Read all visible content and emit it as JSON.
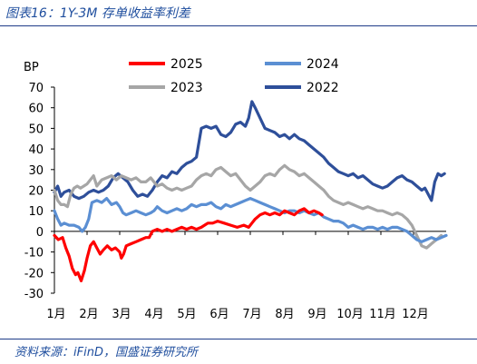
{
  "page": {
    "title": "图表16：1Y-3M 存单收益率利差",
    "source": "资料来源：iFinD，国盛证券研究所"
  },
  "chart_data": {
    "type": "line",
    "title": "",
    "ylabel": "BP",
    "xlabel": "",
    "ylim": [
      -30,
      70
    ],
    "yticks": [
      -30,
      -20,
      -10,
      0,
      10,
      20,
      30,
      40,
      50,
      60,
      70
    ],
    "xlim": [
      0,
      12
    ],
    "xticks": [
      {
        "label": "1月",
        "x": 0
      },
      {
        "label": "2月",
        "x": 1
      },
      {
        "label": "3月",
        "x": 2
      },
      {
        "label": "4月",
        "x": 3
      },
      {
        "label": "5月",
        "x": 4
      },
      {
        "label": "6月",
        "x": 5
      },
      {
        "label": "7月",
        "x": 6
      },
      {
        "label": "8月",
        "x": 7
      },
      {
        "label": "9月",
        "x": 8
      },
      {
        "label": "10月",
        "x": 9
      },
      {
        "label": "11月",
        "x": 10
      },
      {
        "label": "12月",
        "x": 11
      }
    ],
    "grid": false,
    "legend_position": "top",
    "series": [
      {
        "name": "2025",
        "color": "#ff0000",
        "points": [
          [
            0,
            -2
          ],
          [
            0.12,
            -4
          ],
          [
            0.25,
            -3
          ],
          [
            0.35,
            -8
          ],
          [
            0.45,
            -12
          ],
          [
            0.55,
            -18
          ],
          [
            0.65,
            -21
          ],
          [
            0.72,
            -20
          ],
          [
            0.82,
            -24
          ],
          [
            0.92,
            -19
          ],
          [
            1.0,
            -13
          ],
          [
            1.1,
            -7
          ],
          [
            1.2,
            -5
          ],
          [
            1.3,
            -8
          ],
          [
            1.4,
            -11
          ],
          [
            1.5,
            -9
          ],
          [
            1.62,
            -7
          ],
          [
            1.75,
            -9
          ],
          [
            1.87,
            -8
          ],
          [
            2.0,
            -10
          ],
          [
            2.05,
            -13
          ],
          [
            2.12,
            -11
          ],
          [
            2.2,
            -7
          ],
          [
            2.35,
            -6
          ],
          [
            2.5,
            -5
          ],
          [
            2.65,
            -4
          ],
          [
            2.8,
            -3
          ],
          [
            2.9,
            -3
          ],
          [
            3.0,
            0
          ],
          [
            3.15,
            1
          ],
          [
            3.3,
            0
          ],
          [
            3.45,
            1
          ],
          [
            3.6,
            0
          ],
          [
            3.75,
            1
          ],
          [
            3.9,
            2
          ],
          [
            4.05,
            1
          ],
          [
            4.2,
            2
          ],
          [
            4.35,
            1
          ],
          [
            4.5,
            2
          ],
          [
            4.7,
            4
          ],
          [
            4.85,
            4
          ],
          [
            5.0,
            5
          ],
          [
            5.2,
            4
          ],
          [
            5.4,
            3
          ],
          [
            5.6,
            2
          ],
          [
            5.8,
            3
          ],
          [
            5.95,
            2
          ],
          [
            6.05,
            4
          ],
          [
            6.15,
            6
          ],
          [
            6.3,
            8
          ],
          [
            6.45,
            9
          ],
          [
            6.6,
            8
          ],
          [
            6.75,
            9
          ],
          [
            6.9,
            8
          ],
          [
            7.05,
            10
          ],
          [
            7.2,
            9
          ],
          [
            7.35,
            8
          ],
          [
            7.5,
            10
          ],
          [
            7.65,
            11
          ],
          [
            7.8,
            9
          ],
          [
            7.95,
            10
          ],
          [
            8.1,
            9
          ],
          [
            8.2,
            8
          ]
        ]
      },
      {
        "name": "2024",
        "color": "#5b8fd3",
        "points": [
          [
            0,
            10
          ],
          [
            0.1,
            6
          ],
          [
            0.2,
            3
          ],
          [
            0.3,
            4
          ],
          [
            0.45,
            3
          ],
          [
            0.6,
            3
          ],
          [
            0.75,
            2
          ],
          [
            0.85,
            0
          ],
          [
            0.95,
            2
          ],
          [
            1.05,
            6
          ],
          [
            1.15,
            14
          ],
          [
            1.3,
            15
          ],
          [
            1.45,
            14
          ],
          [
            1.6,
            16
          ],
          [
            1.75,
            13
          ],
          [
            1.9,
            14
          ],
          [
            2.0,
            12
          ],
          [
            2.1,
            9
          ],
          [
            2.2,
            8
          ],
          [
            2.35,
            9
          ],
          [
            2.5,
            10
          ],
          [
            2.65,
            9
          ],
          [
            2.8,
            8
          ],
          [
            2.95,
            9
          ],
          [
            3.05,
            10
          ],
          [
            3.15,
            12
          ],
          [
            3.3,
            10
          ],
          [
            3.45,
            9
          ],
          [
            3.6,
            10
          ],
          [
            3.75,
            11
          ],
          [
            3.9,
            10
          ],
          [
            4.05,
            11
          ],
          [
            4.2,
            13
          ],
          [
            4.35,
            12
          ],
          [
            4.5,
            13
          ],
          [
            4.65,
            13
          ],
          [
            4.8,
            14
          ],
          [
            4.95,
            12
          ],
          [
            5.1,
            11
          ],
          [
            5.25,
            13
          ],
          [
            5.4,
            12
          ],
          [
            5.55,
            13
          ],
          [
            5.7,
            14
          ],
          [
            5.85,
            15
          ],
          [
            6.0,
            16
          ],
          [
            6.15,
            15
          ],
          [
            6.3,
            14
          ],
          [
            6.45,
            13
          ],
          [
            6.6,
            12
          ],
          [
            6.75,
            11
          ],
          [
            6.9,
            10
          ],
          [
            7.05,
            9
          ],
          [
            7.2,
            10
          ],
          [
            7.35,
            10
          ],
          [
            7.5,
            9
          ],
          [
            7.65,
            10
          ],
          [
            7.8,
            9
          ],
          [
            7.95,
            8
          ],
          [
            8.1,
            9
          ],
          [
            8.25,
            7
          ],
          [
            8.4,
            6
          ],
          [
            8.55,
            5
          ],
          [
            8.7,
            5
          ],
          [
            8.85,
            4
          ],
          [
            9.0,
            2
          ],
          [
            9.15,
            3
          ],
          [
            9.3,
            2
          ],
          [
            9.45,
            1
          ],
          [
            9.6,
            2
          ],
          [
            9.75,
            2
          ],
          [
            9.9,
            1
          ],
          [
            10.05,
            2
          ],
          [
            10.2,
            1
          ],
          [
            10.35,
            2
          ],
          [
            10.5,
            2
          ],
          [
            10.65,
            1
          ],
          [
            10.8,
            0
          ],
          [
            10.95,
            -2
          ],
          [
            11.1,
            -4
          ],
          [
            11.25,
            -5
          ],
          [
            11.4,
            -4
          ],
          [
            11.55,
            -3
          ],
          [
            11.7,
            -4
          ],
          [
            11.85,
            -3
          ],
          [
            12.0,
            -2
          ]
        ]
      },
      {
        "name": "2023",
        "color": "#a6a6a6",
        "points": [
          [
            0,
            20
          ],
          [
            0.1,
            15
          ],
          [
            0.2,
            13
          ],
          [
            0.3,
            13
          ],
          [
            0.4,
            12
          ],
          [
            0.5,
            18
          ],
          [
            0.6,
            21
          ],
          [
            0.7,
            22
          ],
          [
            0.8,
            21
          ],
          [
            0.9,
            22
          ],
          [
            1.0,
            23
          ],
          [
            1.1,
            25
          ],
          [
            1.2,
            27
          ],
          [
            1.3,
            22
          ],
          [
            1.45,
            25
          ],
          [
            1.6,
            26
          ],
          [
            1.75,
            27
          ],
          [
            1.9,
            25
          ],
          [
            2.05,
            27
          ],
          [
            2.2,
            26
          ],
          [
            2.35,
            25
          ],
          [
            2.5,
            26
          ],
          [
            2.65,
            24
          ],
          [
            2.8,
            24
          ],
          [
            2.95,
            26
          ],
          [
            3.05,
            24
          ],
          [
            3.15,
            22
          ],
          [
            3.3,
            23
          ],
          [
            3.45,
            21
          ],
          [
            3.6,
            20
          ],
          [
            3.75,
            21
          ],
          [
            3.9,
            20
          ],
          [
            4.05,
            21
          ],
          [
            4.2,
            22
          ],
          [
            4.35,
            25
          ],
          [
            4.5,
            27
          ],
          [
            4.65,
            28
          ],
          [
            4.8,
            27
          ],
          [
            4.95,
            30
          ],
          [
            5.1,
            31
          ],
          [
            5.25,
            29
          ],
          [
            5.4,
            27
          ],
          [
            5.55,
            28
          ],
          [
            5.7,
            25
          ],
          [
            5.85,
            22
          ],
          [
            6.0,
            20
          ],
          [
            6.15,
            22
          ],
          [
            6.3,
            24
          ],
          [
            6.45,
            27
          ],
          [
            6.6,
            28
          ],
          [
            6.75,
            27
          ],
          [
            6.9,
            30
          ],
          [
            7.05,
            32
          ],
          [
            7.2,
            30
          ],
          [
            7.35,
            29
          ],
          [
            7.5,
            27
          ],
          [
            7.65,
            28
          ],
          [
            7.8,
            26
          ],
          [
            7.95,
            24
          ],
          [
            8.1,
            22
          ],
          [
            8.25,
            20
          ],
          [
            8.4,
            17
          ],
          [
            8.55,
            15
          ],
          [
            8.7,
            14
          ],
          [
            8.85,
            13
          ],
          [
            9.0,
            14
          ],
          [
            9.15,
            13
          ],
          [
            9.3,
            12
          ],
          [
            9.45,
            11
          ],
          [
            9.6,
            12
          ],
          [
            9.75,
            11
          ],
          [
            9.9,
            10
          ],
          [
            10.05,
            10
          ],
          [
            10.2,
            9
          ],
          [
            10.35,
            8
          ],
          [
            10.5,
            9
          ],
          [
            10.65,
            8
          ],
          [
            10.8,
            6
          ],
          [
            10.95,
            3
          ],
          [
            11.1,
            -2
          ],
          [
            11.25,
            -7
          ],
          [
            11.4,
            -8
          ],
          [
            11.55,
            -6
          ],
          [
            11.7,
            -4
          ],
          [
            11.85,
            -2
          ]
        ]
      },
      {
        "name": "2022",
        "color": "#2e4f9a",
        "points": [
          [
            0,
            19
          ],
          [
            0.1,
            22
          ],
          [
            0.2,
            17
          ],
          [
            0.3,
            19
          ],
          [
            0.45,
            20
          ],
          [
            0.6,
            17
          ],
          [
            0.75,
            16
          ],
          [
            0.9,
            17
          ],
          [
            1.05,
            19
          ],
          [
            1.2,
            20
          ],
          [
            1.35,
            19
          ],
          [
            1.5,
            20
          ],
          [
            1.65,
            22
          ],
          [
            1.8,
            26
          ],
          [
            1.95,
            28
          ],
          [
            2.1,
            26
          ],
          [
            2.25,
            24
          ],
          [
            2.4,
            20
          ],
          [
            2.55,
            17
          ],
          [
            2.7,
            18
          ],
          [
            2.85,
            17
          ],
          [
            3.0,
            20
          ],
          [
            3.15,
            24
          ],
          [
            3.3,
            27
          ],
          [
            3.45,
            26
          ],
          [
            3.6,
            29
          ],
          [
            3.75,
            28
          ],
          [
            3.9,
            31
          ],
          [
            4.05,
            33
          ],
          [
            4.2,
            34
          ],
          [
            4.35,
            36
          ],
          [
            4.5,
            50
          ],
          [
            4.65,
            51
          ],
          [
            4.8,
            50
          ],
          [
            4.95,
            51
          ],
          [
            5.1,
            47
          ],
          [
            5.25,
            46
          ],
          [
            5.4,
            48
          ],
          [
            5.55,
            52
          ],
          [
            5.7,
            53
          ],
          [
            5.85,
            51
          ],
          [
            5.95,
            55
          ],
          [
            6.05,
            63
          ],
          [
            6.15,
            60
          ],
          [
            6.3,
            55
          ],
          [
            6.45,
            50
          ],
          [
            6.6,
            49
          ],
          [
            6.75,
            48
          ],
          [
            6.9,
            46
          ],
          [
            7.05,
            47
          ],
          [
            7.2,
            45
          ],
          [
            7.35,
            47
          ],
          [
            7.5,
            45
          ],
          [
            7.65,
            44
          ],
          [
            7.8,
            42
          ],
          [
            7.95,
            40
          ],
          [
            8.1,
            38
          ],
          [
            8.25,
            36
          ],
          [
            8.4,
            33
          ],
          [
            8.55,
            31
          ],
          [
            8.7,
            29
          ],
          [
            8.85,
            28
          ],
          [
            9.0,
            27
          ],
          [
            9.15,
            28
          ],
          [
            9.3,
            26
          ],
          [
            9.45,
            27
          ],
          [
            9.6,
            25
          ],
          [
            9.75,
            23
          ],
          [
            9.9,
            22
          ],
          [
            10.05,
            21
          ],
          [
            10.2,
            22
          ],
          [
            10.35,
            24
          ],
          [
            10.5,
            26
          ],
          [
            10.65,
            27
          ],
          [
            10.8,
            25
          ],
          [
            10.95,
            24
          ],
          [
            11.1,
            22
          ],
          [
            11.25,
            20
          ],
          [
            11.35,
            21
          ],
          [
            11.45,
            18
          ],
          [
            11.55,
            15
          ],
          [
            11.65,
            24
          ],
          [
            11.75,
            28
          ],
          [
            11.85,
            27
          ],
          [
            11.95,
            28
          ]
        ]
      }
    ]
  }
}
